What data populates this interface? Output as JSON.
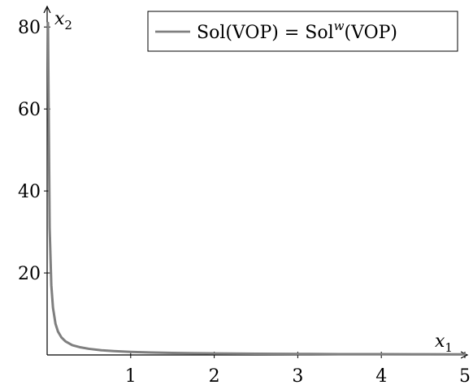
{
  "chart_data": {
    "type": "line",
    "title": "",
    "xlabel": {
      "base": "x",
      "sub": "1"
    },
    "ylabel": {
      "base": "x",
      "sub": "2"
    },
    "xlim": [
      0,
      5
    ],
    "ylim": [
      0,
      85
    ],
    "x_ticks": [
      1,
      2,
      3,
      4,
      5
    ],
    "y_ticks": [
      20,
      40,
      60,
      80
    ],
    "grid": false,
    "legend_position": "top-right",
    "legend": {
      "part1": "Sol(VOP) = Sol",
      "superscript": "w",
      "part2": "(VOP)"
    },
    "series": [
      {
        "color": "#7f7f7f",
        "points": [
          [
            0.01,
            81.0
          ],
          [
            0.03,
            31.0
          ],
          [
            0.05,
            17.0
          ],
          [
            0.07,
            11.5
          ],
          [
            0.1,
            7.6
          ],
          [
            0.13,
            5.7
          ],
          [
            0.17,
            4.3
          ],
          [
            0.22,
            3.3
          ],
          [
            0.3,
            2.4
          ],
          [
            0.4,
            1.85
          ],
          [
            0.5,
            1.5
          ],
          [
            0.65,
            1.15
          ],
          [
            0.8,
            0.95
          ],
          [
            1.0,
            0.75
          ],
          [
            1.25,
            0.6
          ],
          [
            1.5,
            0.5
          ],
          [
            1.75,
            0.43
          ],
          [
            2.0,
            0.37
          ],
          [
            2.5,
            0.3
          ],
          [
            3.0,
            0.25
          ],
          [
            3.5,
            0.21
          ],
          [
            4.0,
            0.19
          ],
          [
            4.5,
            0.17
          ],
          [
            5.0,
            0.15
          ]
        ]
      }
    ]
  }
}
